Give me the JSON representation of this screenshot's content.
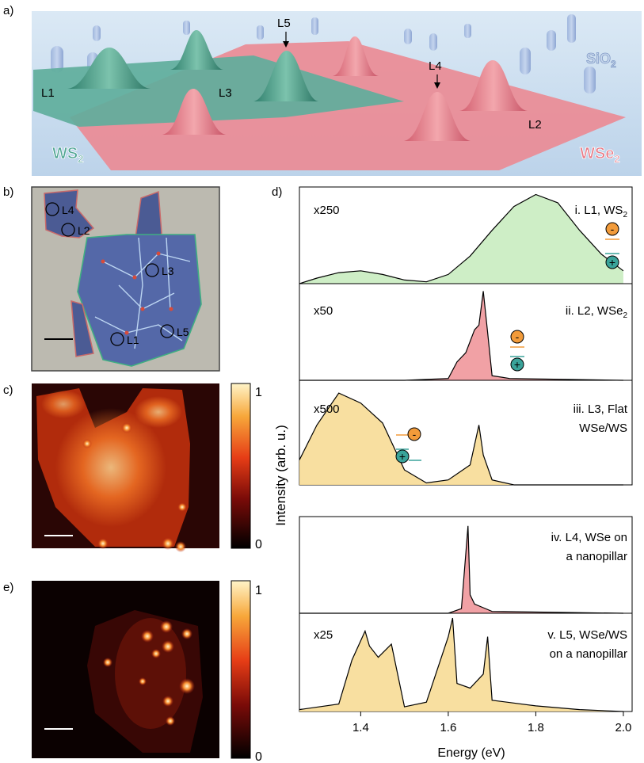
{
  "panels": {
    "a": "a)",
    "b": "b)",
    "c": "c)",
    "d": "d)",
    "e": "e)"
  },
  "panel_a": {
    "labels": [
      "L1",
      "L3",
      "L5",
      "L4",
      "L2"
    ],
    "materials": {
      "ws2": "WS",
      "wse2": "WSe",
      "sio2": "SiO",
      "sub": "2"
    },
    "colors": {
      "ws2": "#4fa592",
      "wse2": "#e97a86",
      "substrate": "#cfe2f1"
    }
  },
  "panel_b": {
    "locations": [
      "L4",
      "L2",
      "L3",
      "L1",
      "L5"
    ]
  },
  "colorbar": {
    "top": "1",
    "bottom": "0"
  },
  "panel_d": {
    "ylabel": "Intensity (arb. u.)",
    "xlabel": "Energy (eV)",
    "xticks": [
      "1.4",
      "1.6",
      "1.8",
      "2.0"
    ],
    "spectra": [
      {
        "mult": "x250",
        "title": "i. L1, WS",
        "title_sub": "2",
        "title2": ""
      },
      {
        "mult": "x50",
        "title": "ii. L2, WSe",
        "title_sub": "2",
        "title2": ""
      },
      {
        "mult": "x500",
        "title": "iii. L3, Flat",
        "title_sub": "",
        "title2": "WSe/WS"
      },
      {
        "mult": "",
        "title": "iv. L4, WSe on",
        "title_sub": "",
        "title2": "a nanopillar"
      },
      {
        "mult": "x25",
        "title": "v. L5, WSe/WS",
        "title_sub": "",
        "title2": "on a nanopillar"
      }
    ],
    "carriers": {
      "electron": "-",
      "hole": "+"
    },
    "colors": {
      "green": "#c9ecc0",
      "red": "#f0979b",
      "yellow": "#f7dc96",
      "electron": "#f29b3a",
      "hole": "#3aa39a"
    }
  },
  "chart_data": {
    "type": "line",
    "xlabel": "Energy (eV)",
    "ylabel": "Intensity (arb. u.)",
    "xlim": [
      1.26,
      2.02
    ],
    "series": [
      {
        "name": "i. L1, WS2",
        "x": [
          1.26,
          1.3,
          1.35,
          1.4,
          1.45,
          1.5,
          1.55,
          1.6,
          1.65,
          1.7,
          1.75,
          1.8,
          1.85,
          1.9,
          1.95,
          2.0
        ],
        "y": [
          0.0,
          0.06,
          0.12,
          0.14,
          0.1,
          0.04,
          0.02,
          0.1,
          0.3,
          0.58,
          0.84,
          0.97,
          0.88,
          0.58,
          0.32,
          0.14
        ]
      },
      {
        "name": "ii. L2, WSe2",
        "x": [
          1.26,
          1.5,
          1.6,
          1.62,
          1.64,
          1.66,
          1.67,
          1.68,
          1.69,
          1.7,
          1.74,
          2.0
        ],
        "y": [
          0.0,
          0.0,
          0.02,
          0.2,
          0.3,
          0.55,
          0.6,
          0.97,
          0.52,
          0.05,
          0.02,
          0.0
        ]
      },
      {
        "name": "iii. L3, Flat WSe2/WS2",
        "x": [
          1.26,
          1.3,
          1.35,
          1.4,
          1.45,
          1.5,
          1.55,
          1.6,
          1.65,
          1.67,
          1.68,
          1.7,
          1.75,
          2.0
        ],
        "y": [
          0.25,
          0.6,
          0.92,
          0.82,
          0.62,
          0.15,
          0.02,
          0.05,
          0.2,
          0.6,
          0.3,
          0.05,
          0.0,
          0.0
        ]
      },
      {
        "name": "iv. L4, WSe2 on a nanopillar",
        "x": [
          1.26,
          1.6,
          1.63,
          1.645,
          1.65,
          1.66,
          1.68,
          1.7,
          2.0
        ],
        "y": [
          0.0,
          0.0,
          0.05,
          0.95,
          0.2,
          0.1,
          0.06,
          0.02,
          0.0
        ]
      },
      {
        "name": "v. L5, WSe2/WS2 on a nanopillar",
        "x": [
          1.26,
          1.35,
          1.38,
          1.41,
          1.42,
          1.44,
          1.47,
          1.5,
          1.55,
          1.6,
          1.61,
          1.62,
          1.65,
          1.68,
          1.69,
          1.7,
          1.8,
          1.9,
          2.0
        ],
        "y": [
          0.02,
          0.08,
          0.55,
          0.86,
          0.7,
          0.58,
          0.72,
          0.05,
          0.1,
          0.8,
          1.0,
          0.3,
          0.25,
          0.4,
          0.8,
          0.12,
          0.06,
          0.02,
          0.0
        ]
      }
    ]
  }
}
